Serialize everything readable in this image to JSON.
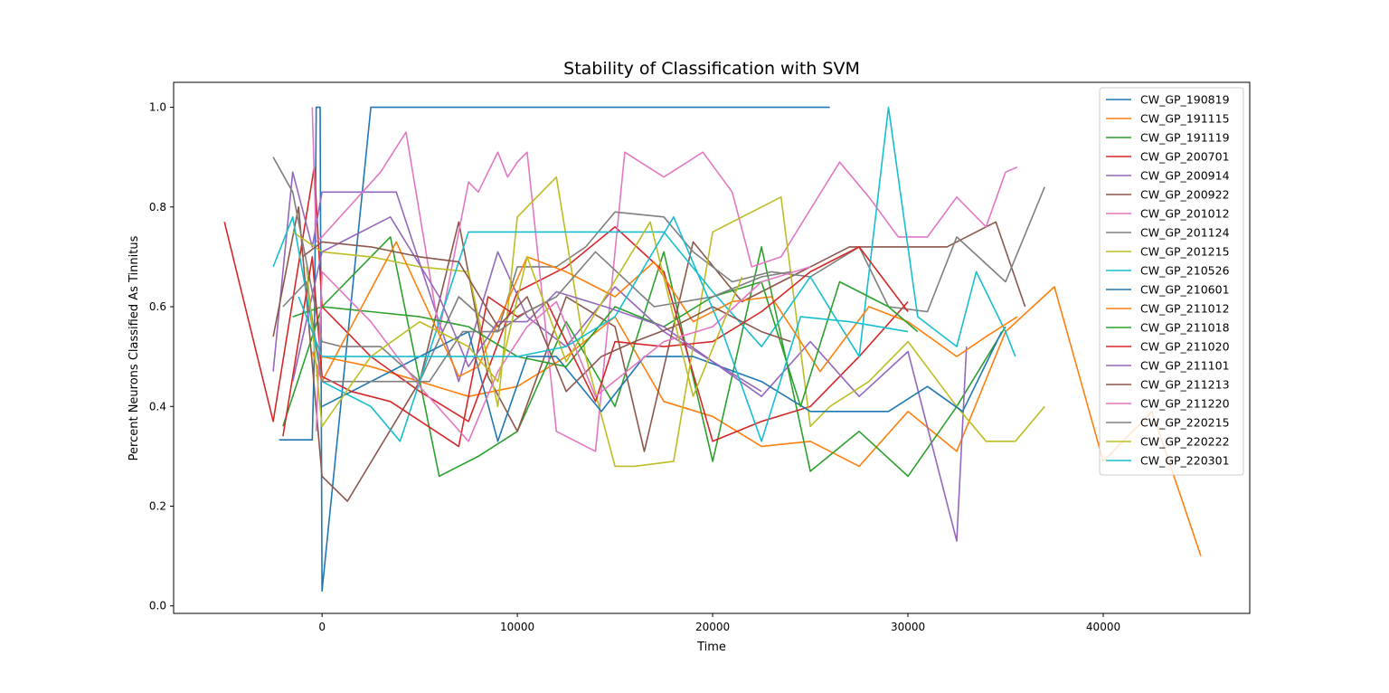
{
  "chart_data": {
    "type": "line",
    "title": "Stability of Classification with SVM",
    "xlabel": "Time",
    "ylabel": "Percent Neurons Classified As Tinnitus",
    "xlim": [
      -7600,
      47500
    ],
    "ylim": [
      -0.015,
      1.05
    ],
    "xticks": [
      0,
      10000,
      20000,
      30000,
      40000
    ],
    "yticks": [
      0.0,
      0.2,
      0.4,
      0.6,
      0.8,
      1.0
    ],
    "grid": false,
    "legend_position": "top-right",
    "series": [
      {
        "name": "CW_GP_190819",
        "color": "#1f77b4",
        "x": [
          -2200,
          -500,
          -400,
          -300,
          -100,
          0,
          2500,
          10000,
          20000,
          26000
        ],
        "y": [
          0.333,
          0.333,
          0.5,
          1.0,
          1.0,
          0.03,
          1.0,
          1.0,
          1.0,
          1.0
        ]
      },
      {
        "name": "CW_GP_191115",
        "color": "#ff7f0e",
        "x": [
          -300,
          0,
          2500,
          5000,
          7500,
          10000,
          12500,
          15000,
          17500,
          20000,
          22500,
          25000,
          27500,
          30000,
          32500,
          35000,
          37500,
          40000,
          42500,
          45000
        ],
        "y": [
          0.46,
          0.5,
          0.48,
          0.45,
          0.42,
          0.44,
          0.5,
          0.58,
          0.41,
          0.38,
          0.32,
          0.33,
          0.28,
          0.39,
          0.31,
          0.55,
          0.64,
          0.29,
          0.39,
          0.1
        ]
      },
      {
        "name": "CW_GP_191119",
        "color": "#2ca02c",
        "x": [
          -2000,
          0,
          3500,
          6000,
          8000,
          10000,
          12500,
          15000,
          17500,
          20000,
          22500,
          25000,
          27500,
          30000,
          32500,
          35000
        ],
        "y": [
          0.36,
          0.6,
          0.74,
          0.26,
          0.3,
          0.35,
          0.57,
          0.4,
          0.71,
          0.29,
          0.72,
          0.27,
          0.35,
          0.26,
          0.4,
          0.56
        ]
      },
      {
        "name": "CW_GP_200701",
        "color": "#d62728",
        "x": [
          -5000,
          -2500,
          -400,
          0,
          2500,
          5000,
          7500,
          10000,
          12500,
          15000,
          17500,
          20000,
          22500,
          25000,
          27500,
          30000
        ],
        "y": [
          0.77,
          0.37,
          0.88,
          0.6,
          0.5,
          0.43,
          0.37,
          0.63,
          0.68,
          0.76,
          0.67,
          0.33,
          0.37,
          0.4,
          0.5,
          0.61
        ]
      },
      {
        "name": "CW_GP_200914",
        "color": "#9467bd",
        "x": [
          -2500,
          -1500,
          -500,
          0,
          3800,
          7000,
          9000,
          10500,
          12500,
          15000,
          17500,
          20000,
          22500,
          25000,
          27500,
          30000,
          32500,
          33000
        ],
        "y": [
          0.47,
          0.87,
          0.72,
          0.83,
          0.83,
          0.45,
          0.71,
          0.58,
          0.52,
          0.64,
          0.55,
          0.49,
          0.42,
          0.53,
          0.42,
          0.51,
          0.13,
          0.52
        ]
      },
      {
        "name": "CW_GP_200922",
        "color": "#8c564b",
        "x": [
          -2500,
          -1200,
          0,
          1300,
          5000,
          7000,
          8500,
          10000,
          12500,
          15000,
          16500,
          19000,
          21500,
          24000,
          27000,
          29500,
          32000,
          34500,
          36000
        ],
        "y": [
          0.54,
          0.8,
          0.26,
          0.21,
          0.45,
          0.77,
          0.46,
          0.35,
          0.62,
          0.56,
          0.31,
          0.73,
          0.61,
          0.66,
          0.72,
          0.72,
          0.72,
          0.77,
          0.6
        ]
      },
      {
        "name": "CW_GP_201012",
        "color": "#e377c2",
        "x": [
          -500,
          -300,
          0,
          3000,
          4300,
          6000,
          7500,
          8000,
          9000,
          9500,
          10000,
          10500,
          12000,
          14000,
          15500,
          17500,
          19500,
          21000,
          22000,
          23500,
          26500,
          28000,
          29500,
          31000,
          32500,
          34000,
          35000,
          35600
        ],
        "y": [
          1.0,
          0.73,
          0.74,
          0.87,
          0.95,
          0.55,
          0.85,
          0.83,
          0.91,
          0.86,
          0.89,
          0.91,
          0.35,
          0.31,
          0.91,
          0.86,
          0.91,
          0.83,
          0.68,
          0.7,
          0.89,
          0.82,
          0.74,
          0.74,
          0.82,
          0.76,
          0.87,
          0.88
        ]
      },
      {
        "name": "CW_GP_201124",
        "color": "#7f7f7f",
        "x": [
          -2500,
          -1500,
          0,
          1000,
          3000,
          5000,
          7000,
          9000,
          10000,
          12000,
          13500,
          15000,
          17500,
          19000,
          21000,
          23000,
          25000,
          27500,
          29000,
          31000,
          32500,
          35000,
          37000
        ],
        "y": [
          0.9,
          0.83,
          0.53,
          0.52,
          0.52,
          0.45,
          0.62,
          0.55,
          0.68,
          0.68,
          0.72,
          0.79,
          0.78,
          0.71,
          0.65,
          0.67,
          0.66,
          0.72,
          0.6,
          0.59,
          0.74,
          0.65,
          0.84
        ]
      },
      {
        "name": "CW_GP_201215",
        "color": "#bcbd22",
        "x": [
          -1500,
          0,
          2500,
          5000,
          7500,
          9000,
          10000,
          12000,
          13500,
          15000,
          16000,
          18000,
          20000,
          23500,
          25000,
          26000,
          28000,
          30000,
          32500,
          34000,
          35500,
          37000
        ],
        "y": [
          0.75,
          0.71,
          0.7,
          0.68,
          0.67,
          0.4,
          0.78,
          0.86,
          0.5,
          0.28,
          0.28,
          0.29,
          0.75,
          0.82,
          0.36,
          0.4,
          0.45,
          0.53,
          0.4,
          0.33,
          0.33,
          0.4
        ]
      },
      {
        "name": "CW_GP_210526",
        "color": "#17becf",
        "x": [
          -2500,
          -1500,
          0,
          2500,
          4000,
          7500,
          10000,
          12500,
          15000,
          17500,
          20000,
          22500,
          25000,
          27500,
          29000,
          30500,
          32500,
          33500,
          35000,
          35500
        ],
        "y": [
          0.68,
          0.78,
          0.45,
          0.4,
          0.33,
          0.75,
          0.75,
          0.75,
          0.75,
          0.75,
          0.63,
          0.52,
          0.66,
          0.5,
          1.0,
          0.58,
          0.52,
          0.67,
          0.55,
          0.5
        ]
      },
      {
        "name": "CW_GP_210601",
        "color": "#1f77b4",
        "x": [
          0,
          7500,
          9000,
          10500,
          12000,
          14300,
          16500,
          19000,
          22500,
          25000,
          27500,
          29000,
          31000,
          32800,
          34800
        ],
        "y": [
          0.4,
          0.55,
          0.33,
          0.5,
          0.5,
          0.39,
          0.5,
          0.5,
          0.45,
          0.39,
          0.39,
          0.39,
          0.44,
          0.39,
          0.55
        ]
      },
      {
        "name": "CW_GP_211012",
        "color": "#ff7f0e",
        "x": [
          -500,
          0,
          3800,
          7000,
          8000,
          10500,
          12500,
          15000,
          17000,
          19000,
          21000,
          23000,
          25500,
          28000,
          30000,
          32500,
          34000,
          35600
        ],
        "y": [
          0.51,
          0.45,
          0.73,
          0.46,
          0.48,
          0.7,
          0.67,
          0.62,
          0.69,
          0.57,
          0.61,
          0.62,
          0.47,
          0.6,
          0.57,
          0.5,
          0.54,
          0.58
        ]
      },
      {
        "name": "CW_GP_211018",
        "color": "#2ca02c",
        "x": [
          -1500,
          0,
          2500,
          5000,
          7500,
          10000,
          12500,
          15000,
          17500,
          20000,
          22500,
          24500,
          26500,
          29000,
          30500
        ],
        "y": [
          0.58,
          0.6,
          0.59,
          0.58,
          0.56,
          0.5,
          0.48,
          0.6,
          0.56,
          0.62,
          0.65,
          0.4,
          0.65,
          0.6,
          0.55
        ]
      },
      {
        "name": "CW_GP_211020",
        "color": "#d62728",
        "x": [
          -2000,
          -500,
          0,
          1500,
          3500,
          7000,
          8500,
          10000,
          11500,
          14000,
          15000,
          17500,
          20000,
          22500,
          25000,
          27500,
          30000
        ],
        "y": [
          0.34,
          0.7,
          0.46,
          0.43,
          0.41,
          0.32,
          0.62,
          0.58,
          0.61,
          0.41,
          0.53,
          0.52,
          0.53,
          0.59,
          0.67,
          0.72,
          0.59
        ]
      },
      {
        "name": "CW_GP_211101",
        "color": "#9467bd",
        "x": [
          -1500,
          0,
          3500,
          6000,
          7500,
          9000,
          10500,
          12000,
          14500,
          17500,
          20000,
          22500
        ],
        "y": [
          0.45,
          0.71,
          0.78,
          0.62,
          0.48,
          0.57,
          0.57,
          0.63,
          0.6,
          0.56,
          0.49,
          0.43
        ]
      },
      {
        "name": "CW_GP_211213",
        "color": "#8c564b",
        "x": [
          -1000,
          0,
          2500,
          5000,
          7000,
          9000,
          10500,
          12500,
          14300,
          16000,
          18000,
          20000,
          22500,
          24000
        ],
        "y": [
          0.7,
          0.73,
          0.72,
          0.7,
          0.69,
          0.56,
          0.62,
          0.43,
          0.5,
          0.53,
          0.56,
          0.6,
          0.55,
          0.53
        ]
      },
      {
        "name": "CW_GP_211220",
        "color": "#e377c2",
        "x": [
          -300,
          0,
          2500,
          5000,
          7500,
          9000,
          10500,
          12000,
          14000,
          17500,
          20000,
          22500,
          25000
        ],
        "y": [
          0.35,
          0.67,
          0.57,
          0.44,
          0.33,
          0.47,
          0.56,
          0.61,
          0.42,
          0.53,
          0.56,
          0.65,
          0.68
        ]
      },
      {
        "name": "CW_GP_220215",
        "color": "#7f7f7f",
        "x": [
          -2000,
          -800,
          0,
          2500,
          5500,
          7200,
          9000,
          10500,
          12000,
          14000,
          17000,
          20000,
          22500,
          24000
        ],
        "y": [
          0.6,
          0.65,
          0.45,
          0.45,
          0.45,
          0.55,
          0.55,
          0.59,
          0.62,
          0.71,
          0.6,
          0.62,
          0.66,
          0.67
        ]
      },
      {
        "name": "CW_GP_220222",
        "color": "#bcbd22",
        "x": [
          -800,
          0,
          2500,
          5000,
          7500,
          9000,
          10500,
          12500,
          14500,
          16800,
          19000,
          21500
        ],
        "y": [
          0.68,
          0.36,
          0.5,
          0.57,
          0.52,
          0.45,
          0.7,
          0.49,
          0.62,
          0.77,
          0.42,
          0.66
        ]
      },
      {
        "name": "CW_GP_220301",
        "color": "#17becf",
        "x": [
          -1200,
          0,
          2500,
          5000,
          7500,
          10000,
          12500,
          15000,
          18000,
          20500,
          22500,
          24500,
          27000,
          30000
        ],
        "y": [
          0.62,
          0.5,
          0.5,
          0.5,
          0.5,
          0.5,
          0.52,
          0.58,
          0.78,
          0.55,
          0.33,
          0.58,
          0.57,
          0.55
        ]
      }
    ]
  }
}
